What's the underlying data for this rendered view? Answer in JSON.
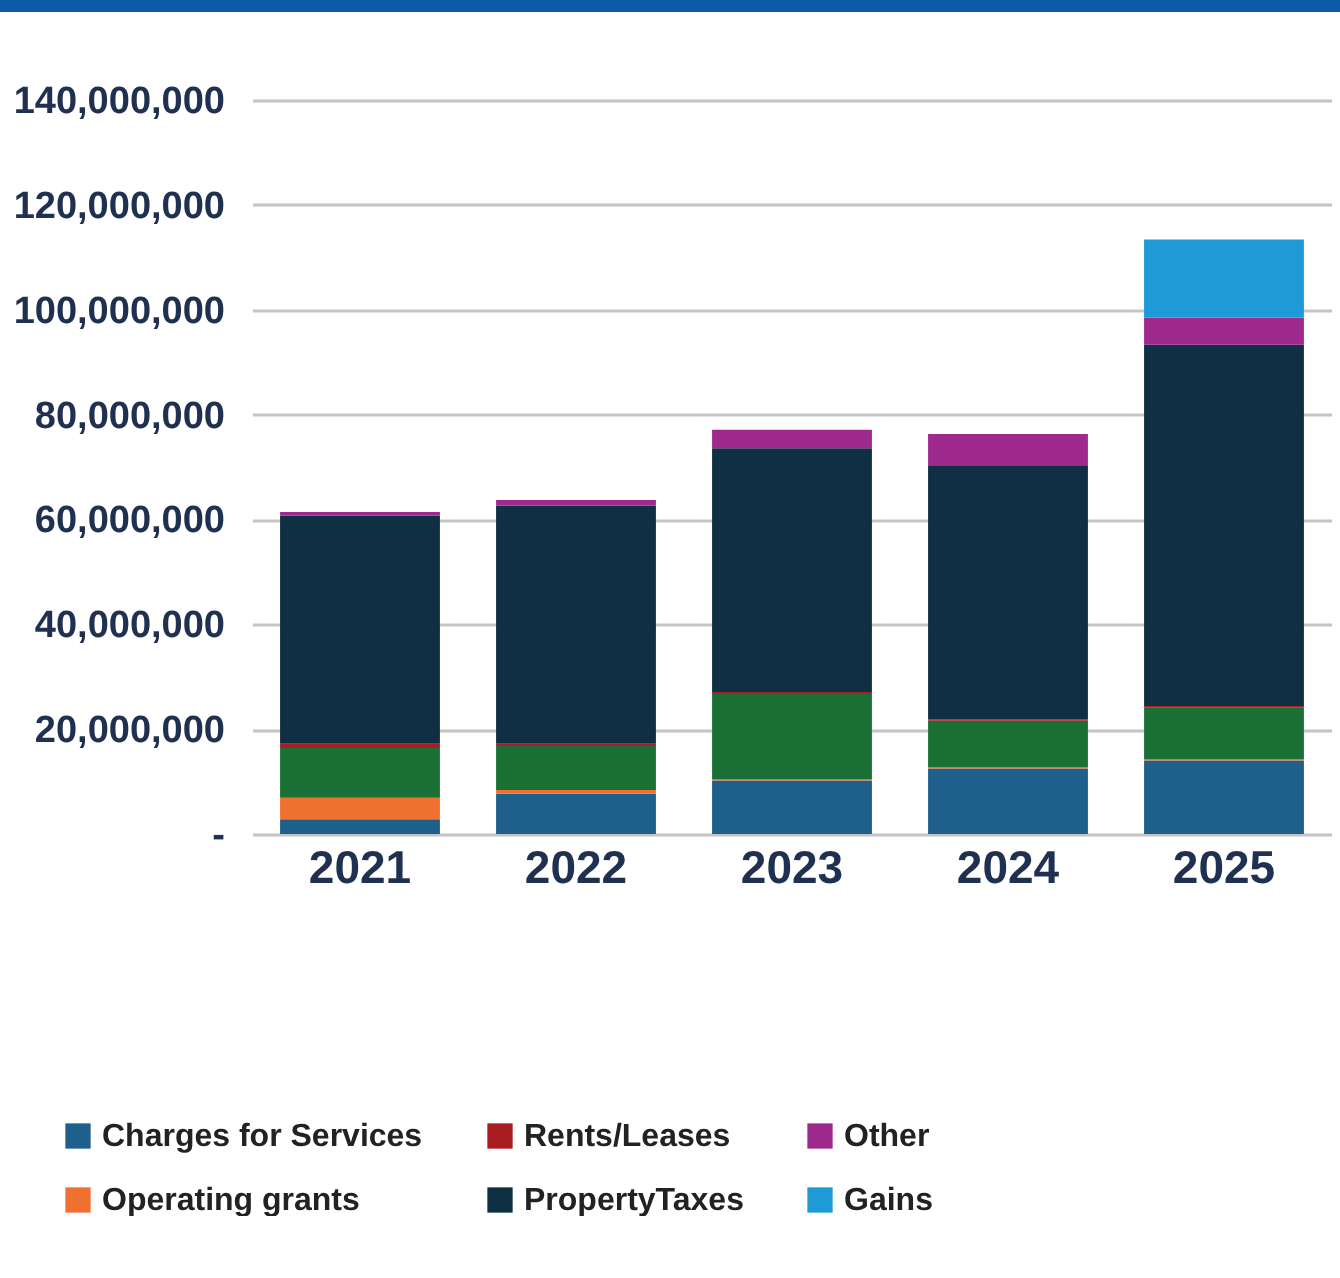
{
  "chart_data": {
    "type": "bar",
    "stacked": true,
    "categories": [
      "2021",
      "2022",
      "2023",
      "2024",
      "2025"
    ],
    "series": [
      {
        "name": "Charges for Services",
        "color": "#1f5f8b",
        "values": [
          2800000,
          7700000,
          10200000,
          12500000,
          14000000
        ]
      },
      {
        "name": "Operating grants",
        "color": "#f07030",
        "values": [
          4100000,
          700000,
          300000,
          300000,
          300000
        ]
      },
      {
        "color": "#1a7035",
        "values": [
          9500000,
          8400000,
          16200000,
          8800000,
          9800000
        ]
      },
      {
        "name": "Rents/Leases",
        "color": "#a81c22",
        "values": [
          800000,
          400000,
          400000,
          300000,
          300000
        ]
      },
      {
        "name": "PropertyTaxes",
        "color": "#0f2f42",
        "values": [
          43500000,
          45400000,
          46500000,
          48300000,
          68900000
        ]
      },
      {
        "name": "Other",
        "color": "#9e2a8e",
        "values": [
          700000,
          1100000,
          3500000,
          6100000,
          5200000
        ]
      },
      {
        "name": "Gains",
        "color": "#1e9ad6",
        "values": [
          null,
          null,
          null,
          null,
          14900000
        ]
      }
    ],
    "ylim": [
      0,
      140000000
    ],
    "yticks": [
      {
        "value": 0,
        "label": "-"
      },
      {
        "value": 20000000,
        "label": "20,000,000"
      },
      {
        "value": 40000000,
        "label": "40,000,000"
      },
      {
        "value": 60000000,
        "label": "60,000,000"
      },
      {
        "value": 80000000,
        "label": "80,000,000"
      },
      {
        "value": 100000000,
        "label": "100,000,000"
      },
      {
        "value": 120000000,
        "label": "120,000,000"
      },
      {
        "value": 140000000,
        "label": "140,000,000"
      }
    ],
    "grid": "y",
    "legend": "bottom"
  }
}
